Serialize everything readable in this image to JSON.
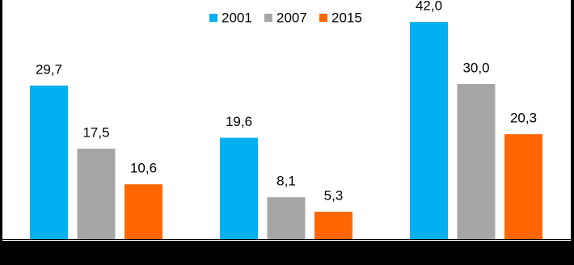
{
  "chart_data": {
    "type": "bar",
    "categories": [
      null,
      null,
      null
    ],
    "series": [
      {
        "name": "2001",
        "color": "#00b0f0",
        "values": [
          29.7,
          19.6,
          42.0
        ],
        "value_labels": [
          "29,7",
          "19,6",
          "42,0"
        ]
      },
      {
        "name": "2007",
        "color": "#a6a6a6",
        "values": [
          17.5,
          8.1,
          30.0
        ],
        "value_labels": [
          "17,5",
          "8,1",
          "30,0"
        ]
      },
      {
        "name": "2015",
        "color": "#ff6600",
        "values": [
          10.6,
          5.3,
          20.3
        ],
        "value_labels": [
          "10,6",
          "5,3",
          "20,3"
        ]
      }
    ],
    "legend": "top"
  }
}
